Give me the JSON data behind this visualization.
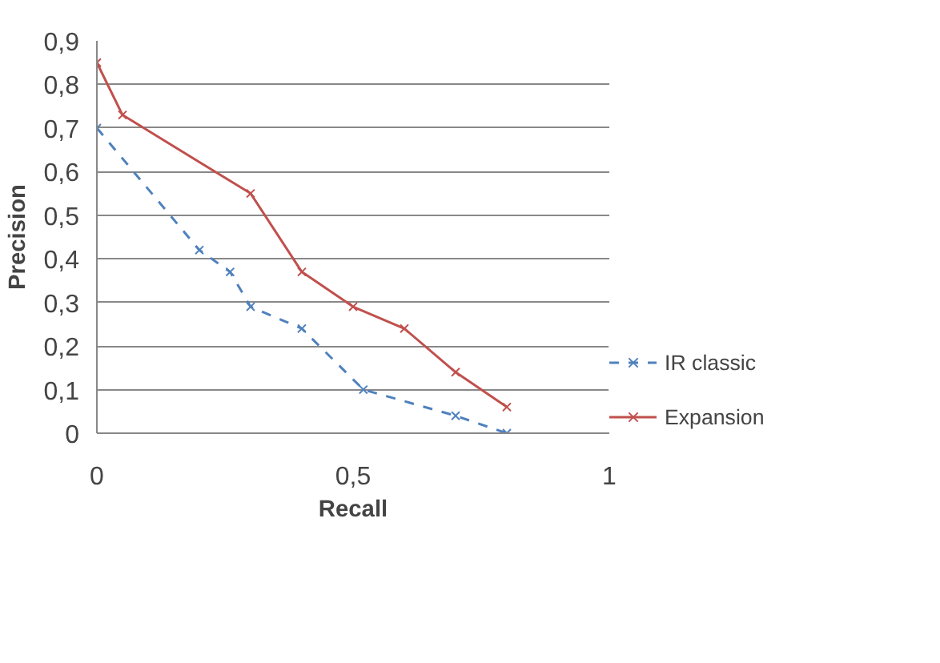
{
  "chart_data": {
    "type": "line",
    "xlabel": "Recall",
    "ylabel": "Precision",
    "xlim": [
      0,
      1
    ],
    "ylim": [
      0,
      0.9
    ],
    "xticks": [
      0,
      {
        "value": 0.5,
        "label": "0,5"
      },
      1
    ],
    "yticks": [
      0,
      {
        "value": 0.1,
        "label": "0,1"
      },
      {
        "value": 0.2,
        "label": "0,2"
      },
      {
        "value": 0.3,
        "label": "0,3"
      },
      {
        "value": 0.4,
        "label": "0,4"
      },
      {
        "value": 0.5,
        "label": "0,5"
      },
      {
        "value": 0.6,
        "label": "0,6"
      },
      {
        "value": 0.7,
        "label": "0,7"
      },
      {
        "value": 0.8,
        "label": "0,8"
      },
      {
        "value": 0.9,
        "label": "0,9"
      }
    ],
    "grid": "y",
    "legend": "bottom right",
    "marker": "cross",
    "series": [
      {
        "name": "IR classic",
        "color": "#4f81bd",
        "line_style": "dashed",
        "x": [
          0,
          0.2,
          0.26,
          0.3,
          0.4,
          0.52,
          0.7,
          0.8
        ],
        "values": [
          0.7,
          0.42,
          0.37,
          0.29,
          0.24,
          0.1,
          0.04,
          0
        ]
      },
      {
        "name": "Expansion",
        "color": "#c0504d",
        "line_style": "solid",
        "x": [
          0,
          0.05,
          0.3,
          0.4,
          0.5,
          0.6,
          0.7,
          0.8
        ],
        "values": [
          0.85,
          0.73,
          0.55,
          0.37,
          0.29,
          0.24,
          0.14,
          0.06
        ]
      }
    ]
  }
}
